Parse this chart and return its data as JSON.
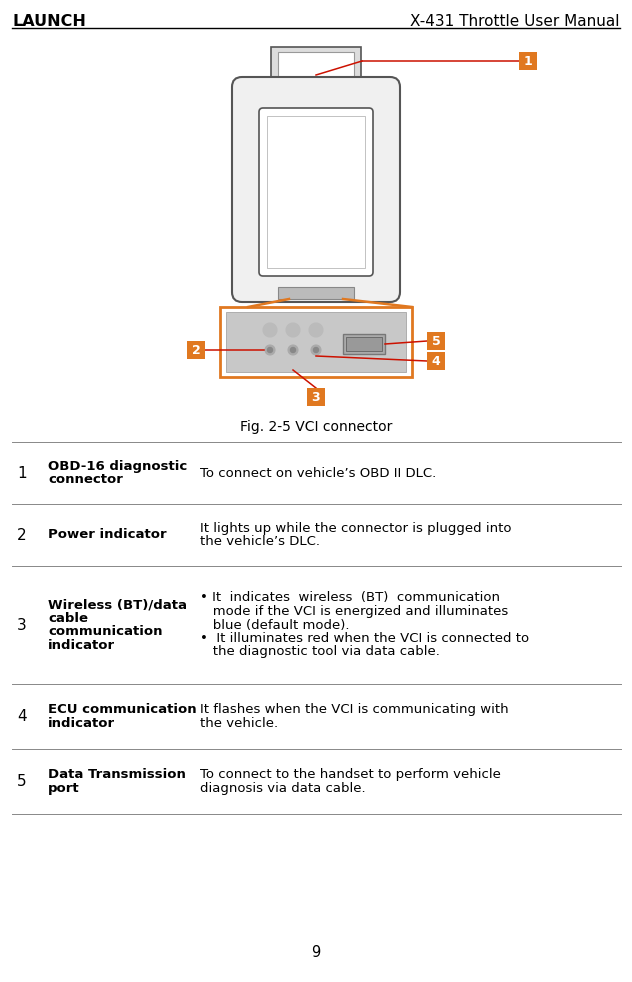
{
  "header_left": "LAUNCH",
  "header_right": "X-431 Throttle User Manual",
  "fig_caption": "Fig. 2-5 VCI connector",
  "page_number": "9",
  "orange_color": "#E07820",
  "red_line_color": "#CC1100",
  "bg_color": "#FFFFFF",
  "gray_device": "#AAAAAA",
  "gray_dark": "#555555",
  "gray_mid": "#888888",
  "gray_light": "#CCCCCC",
  "table_rows": [
    {
      "num": "1",
      "term": "OBD-16 diagnostic\nconnector",
      "desc": "To connect on vehicle’s OBD II DLC."
    },
    {
      "num": "2",
      "term": "Power indicator",
      "desc": "It lights up while the connector is plugged into\nthe vehicle’s DLC."
    },
    {
      "num": "3",
      "term": "Wireless (BT)/data\ncable\ncommunication\nindicator",
      "desc": "• It  indicates  wireless  (BT)  communication\n   mode if the VCI is energized and illuminates\n   blue (default mode).\n•  It illuminates red when the VCI is connected to\n   the diagnostic tool via data cable."
    },
    {
      "num": "4",
      "term": "ECU communication\nindicator",
      "desc": "It flashes when the VCI is communicating with\nthe vehicle."
    },
    {
      "num": "5",
      "term": "Data Transmission\nport",
      "desc": "To connect to the handset to perform vehicle\ndiagnosis via data cable."
    }
  ]
}
